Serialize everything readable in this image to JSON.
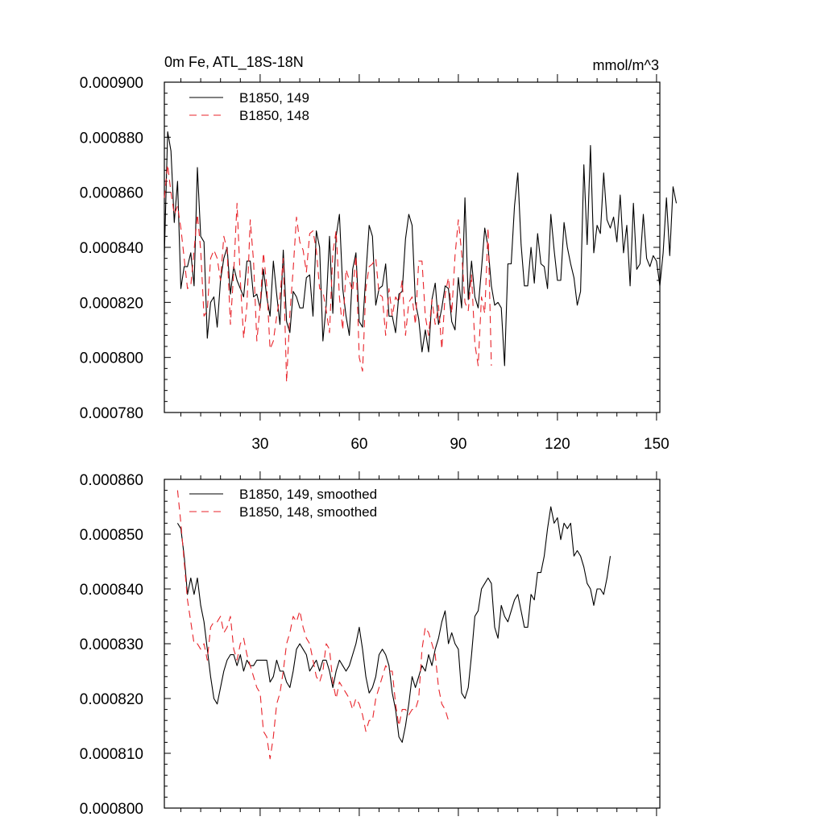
{
  "chart_data": [
    {
      "type": "line",
      "title": "0m Fe, ATL_18S-18N",
      "units": "mmol/m^3",
      "xlim": [
        1,
        151
      ],
      "ylim": [
        0.00078,
        0.0009
      ],
      "xticks": [
        30,
        60,
        90,
        120,
        150
      ],
      "yticks": [
        0.00078,
        0.0008,
        0.00082,
        0.00084,
        0.00086,
        0.00088,
        0.0009
      ],
      "ytick_labels": [
        "0.000780",
        "0.000800",
        "0.000820",
        "0.000840",
        "0.000860",
        "0.000880",
        "0.000900"
      ],
      "legend": [
        "B1850, 149",
        "B1850, 148"
      ],
      "series": [
        {
          "name": "B1850, 149",
          "color": "#000000",
          "dash": "solid",
          "x_start": 1,
          "values": [
            0.000837,
            0.000882,
            0.000875,
            0.000849,
            0.000864,
            0.000825,
            0.000833,
            0.000833,
            0.000838,
            0.000826,
            0.000869,
            0.000844,
            0.000842,
            0.000807,
            0.00082,
            0.000822,
            0.000811,
            0.000828,
            0.000836,
            0.00084,
            0.000823,
            0.000833,
            0.000828,
            0.000825,
            0.000822,
            0.000835,
            0.000835,
            0.000822,
            0.000823,
            0.000818,
            0.000832,
            0.000822,
            0.000815,
            0.000835,
            0.000823,
            0.000812,
            0.000839,
            0.000813,
            0.000809,
            0.000824,
            0.000822,
            0.000818,
            0.000818,
            0.000829,
            0.00083,
            0.000815,
            0.000846,
            0.00084,
            0.000806,
            0.000819,
            0.000844,
            0.000816,
            0.000844,
            0.000852,
            0.000825,
            0.000815,
            0.000808,
            0.000832,
            0.000838,
            0.000813,
            0.000811,
            0.00083,
            0.000848,
            0.000844,
            0.000819,
            0.000825,
            0.000826,
            0.000834,
            0.000815,
            0.000815,
            0.000809,
            0.000823,
            0.000824,
            0.000843,
            0.000852,
            0.000848,
            0.00082,
            0.000814,
            0.000802,
            0.00081,
            0.000802,
            0.000821,
            0.000827,
            0.000812,
            0.000818,
            0.000826,
            0.000825,
            0.000813,
            0.00081,
            0.000829,
            0.000818,
            0.000858,
            0.000821,
            0.000835,
            0.000822,
            0.000818,
            0.000832,
            0.000847,
            0.00084,
            0.000826,
            0.000819,
            0.00082,
            0.000818,
            0.000797,
            0.000834,
            0.000834,
            0.000855,
            0.000867,
            0.000841,
            0.000826,
            0.000826,
            0.00084,
            0.000827,
            0.000845,
            0.000834,
            0.000833,
            0.000825,
            0.000852,
            0.000839,
            0.000828,
            0.000828,
            0.000849,
            0.00084,
            0.000834,
            0.000829,
            0.000819,
            0.000824,
            0.00087,
            0.000841,
            0.000877,
            0.000838,
            0.000848,
            0.000845,
            0.000867,
            0.00085,
            0.000847,
            0.000851,
            0.000842,
            0.000859,
            0.000838,
            0.000848,
            0.000826,
            0.000856,
            0.000832,
            0.000834,
            0.000852,
            0.000836,
            0.000833,
            0.000837,
            0.000835,
            0.000826,
            0.000838,
            0.000858,
            0.000837,
            0.000862,
            0.000856
          ]
        },
        {
          "name": "B1850, 148",
          "color": "#e8232a",
          "dash": "dashed",
          "x_start": 1,
          "values": [
            0.000858,
            0.00087,
            0.00086,
            0.000852,
            0.000855,
            0.000847,
            0.000836,
            0.000825,
            0.000826,
            0.000839,
            0.000852,
            0.000839,
            0.000815,
            0.000817,
            0.000836,
            0.000839,
            0.000836,
            0.000828,
            0.000844,
            0.000839,
            0.000812,
            0.000831,
            0.000856,
            0.000828,
            0.000807,
            0.000819,
            0.00085,
            0.000835,
            0.000806,
            0.000819,
            0.000838,
            0.000826,
            0.000803,
            0.000806,
            0.000815,
            0.000822,
            0.000836,
            0.000791,
            0.000816,
            0.000832,
            0.000851,
            0.000842,
            0.000839,
            0.000831,
            0.000845,
            0.000846,
            0.000839,
            0.000825,
            0.000824,
            0.000817,
            0.000809,
            0.000838,
            0.000846,
            0.000822,
            0.00081,
            0.000832,
            0.000828,
            0.000824,
            0.000837,
            0.0008,
            0.000795,
            0.000825,
            0.000833,
            0.000834,
            0.000836,
            0.000823,
            0.000822,
            0.000808,
            0.000825,
            0.000815,
            0.000822,
            0.00082,
            0.000828,
            0.000808,
            0.00082,
            0.000822,
            0.000812,
            0.000835,
            0.000835,
            0.000815,
            0.000808,
            0.000821,
            0.000812,
            0.000819,
            0.000803,
            0.000823,
            0.000829,
            0.000816,
            0.000837,
            0.00085,
            0.000838,
            0.00082,
            0.000817,
            0.00083,
            0.000805,
            0.000797,
            0.000822,
            0.000816,
            0.000847,
            0.000797
          ]
        }
      ]
    },
    {
      "type": "line",
      "xlim": [
        1,
        151
      ],
      "ylim": [
        0.0008,
        0.00086
      ],
      "xticks": [
        30,
        60,
        90,
        120,
        150
      ],
      "yticks": [
        0.0008,
        0.00081,
        0.00082,
        0.00083,
        0.00084,
        0.00085,
        0.00086
      ],
      "ytick_labels": [
        "0.000800",
        "0.000810",
        "0.000820",
        "0.000830",
        "0.000840",
        "0.000850",
        "0.000860"
      ],
      "legend": [
        "B1850, 149, smoothed",
        "B1850, 148, smoothed"
      ],
      "series": [
        {
          "name": "B1850, 149, smoothed",
          "color": "#000000",
          "dash": "solid",
          "x_start": 5,
          "values": [
            0.000852,
            0.000851,
            0.000846,
            0.000839,
            0.000842,
            0.000839,
            0.000842,
            0.000837,
            0.000834,
            0.000829,
            0.000824,
            0.00082,
            0.000819,
            0.000822,
            0.000825,
            0.000827,
            0.000828,
            0.000828,
            0.000826,
            0.000828,
            0.000825,
            0.000827,
            0.000826,
            0.000826,
            0.000827,
            0.000827,
            0.000827,
            0.000827,
            0.000823,
            0.000824,
            0.000827,
            0.000825,
            0.000825,
            0.000823,
            0.000822,
            0.000825,
            0.000829,
            0.00083,
            0.000829,
            0.000828,
            0.000825,
            0.000826,
            0.000827,
            0.000825,
            0.000827,
            0.000827,
            0.000825,
            0.000822,
            0.000825,
            0.000827,
            0.000826,
            0.000825,
            0.000826,
            0.000828,
            0.00083,
            0.000833,
            0.000829,
            0.000824,
            0.000821,
            0.000822,
            0.000824,
            0.000828,
            0.000829,
            0.000828,
            0.000826,
            0.000821,
            0.000818,
            0.000813,
            0.000812,
            0.000815,
            0.000819,
            0.000824,
            0.000822,
            0.000824,
            0.000826,
            0.000825,
            0.000828,
            0.000826,
            0.000829,
            0.000831,
            0.000834,
            0.000836,
            0.00083,
            0.000832,
            0.00083,
            0.000829,
            0.000821,
            0.00082,
            0.000822,
            0.000828,
            0.000835,
            0.000836,
            0.00084,
            0.000841,
            0.000842,
            0.000841,
            0.000833,
            0.000831,
            0.000837,
            0.000835,
            0.000834,
            0.000836,
            0.000838,
            0.000839,
            0.000836,
            0.000833,
            0.000833,
            0.000839,
            0.000838,
            0.000843,
            0.000843,
            0.000846,
            0.000851,
            0.000855,
            0.000852,
            0.000853,
            0.000849,
            0.000852,
            0.000851,
            0.000852,
            0.000846,
            0.000847,
            0.000846,
            0.000844,
            0.000841,
            0.00084,
            0.000837,
            0.00084,
            0.00084,
            0.000839,
            0.000842,
            0.000846
          ]
        },
        {
          "name": "B1850, 148, smoothed",
          "color": "#e8232a",
          "dash": "dashed",
          "x_start": 5,
          "values": [
            0.000858,
            0.000852,
            0.000845,
            0.000838,
            0.000834,
            0.00083,
            0.00083,
            0.000829,
            0.00083,
            0.000827,
            0.000833,
            0.000834,
            0.000834,
            0.000835,
            0.000832,
            0.000833,
            0.000835,
            0.000829,
            0.000827,
            0.00083,
            0.000831,
            0.000828,
            0.000826,
            0.000824,
            0.000822,
            0.000821,
            0.000814,
            0.000813,
            0.000809,
            0.000813,
            0.000819,
            0.000821,
            0.000825,
            0.00083,
            0.000832,
            0.000835,
            0.000834,
            0.000836,
            0.000833,
            0.000831,
            0.00083,
            0.000827,
            0.000824,
            0.000823,
            0.000825,
            0.00083,
            0.000829,
            0.000823,
            0.00082,
            0.000823,
            0.000822,
            0.000821,
            0.00082,
            0.000818,
            0.00082,
            0.000819,
            0.000817,
            0.000814,
            0.000816,
            0.000816,
            0.00082,
            0.000822,
            0.000824,
            0.000826,
            0.000825,
            0.000825,
            0.000819,
            0.000815,
            0.000818,
            0.000818,
            0.000817,
            0.000818,
            0.000818,
            0.00082,
            0.000829,
            0.000833,
            0.000832,
            0.00083,
            0.000828,
            0.000822,
            0.000819,
            0.000818,
            0.000816
          ]
        }
      ]
    }
  ]
}
